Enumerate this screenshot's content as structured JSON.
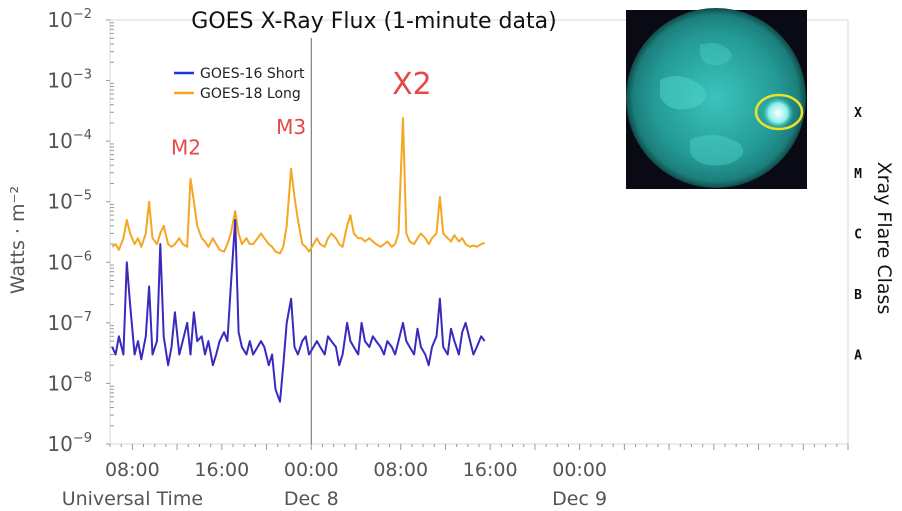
{
  "chart_data": {
    "type": "line",
    "title": "GOES X-Ray Flux (1-minute data)",
    "ylabel": "Watts · m⁻²",
    "xlabel": "Universal Time",
    "right_label": "Xray Flare Class",
    "y_scale": "log",
    "ylim": [
      1e-09,
      0.01
    ],
    "xlim_hours": [
      -18,
      48
    ],
    "grid": false,
    "legend_position": "top-left",
    "y_ticks": [
      {
        "value": 1e-09,
        "base": "10",
        "exp": "−9"
      },
      {
        "value": 1e-08,
        "base": "10",
        "exp": "−8"
      },
      {
        "value": 1e-07,
        "base": "10",
        "exp": "−7"
      },
      {
        "value": 1e-06,
        "base": "10",
        "exp": "−6"
      },
      {
        "value": 1e-05,
        "base": "10",
        "exp": "−5"
      },
      {
        "value": 0.0001,
        "base": "10",
        "exp": "−4"
      },
      {
        "value": 0.001,
        "base": "10",
        "exp": "−3"
      },
      {
        "value": 0.01,
        "base": "10",
        "exp": "−2"
      }
    ],
    "x_ticks": [
      {
        "hour": -16,
        "label": "08:00",
        "sub": "Universal Time"
      },
      {
        "hour": -8,
        "label": "16:00",
        "sub": ""
      },
      {
        "hour": 0,
        "label": "00:00",
        "sub": "Dec 8"
      },
      {
        "hour": 8,
        "label": "08:00",
        "sub": ""
      },
      {
        "hour": 16,
        "label": "16:00",
        "sub": ""
      },
      {
        "hour": 24,
        "label": "00:00",
        "sub": "Dec 9"
      }
    ],
    "flare_classes": [
      {
        "label": "X",
        "value": 0.0003
      },
      {
        "label": "M",
        "value": 3e-05
      },
      {
        "label": "C",
        "value": 3e-06
      },
      {
        "label": "B",
        "value": 3e-07
      },
      {
        "label": "A",
        "value": 3e-08
      }
    ],
    "annotations": [
      {
        "text": "M2",
        "hour": -11.2,
        "value": 6e-05,
        "size": 20
      },
      {
        "text": "M3",
        "hour": -1.8,
        "value": 0.00013,
        "size": 20
      },
      {
        "text": "X2",
        "hour": 9.0,
        "value": 0.0006,
        "size": 30
      }
    ],
    "series": [
      {
        "name": "GOES-16 Short",
        "color": "#1a36d6",
        "x": [
          -17.8,
          -17.5,
          -17.2,
          -16.8,
          -16.5,
          -16.2,
          -15.8,
          -15.5,
          -15.2,
          -14.8,
          -14.5,
          -14.2,
          -13.8,
          -13.5,
          -13.2,
          -12.8,
          -12.5,
          -12.2,
          -11.8,
          -11.5,
          -11.1,
          -10.8,
          -10.5,
          -10.2,
          -9.8,
          -9.5,
          -9.2,
          -8.8,
          -8.5,
          -8.2,
          -7.8,
          -7.5,
          -7.2,
          -6.8,
          -6.5,
          -6.2,
          -5.8,
          -5.5,
          -5.2,
          -4.8,
          -4.5,
          -4.2,
          -3.8,
          -3.5,
          -3.2,
          -2.8,
          -2.5,
          -2.2,
          -1.8,
          -1.5,
          -1.2,
          -0.8,
          -0.5,
          -0.2,
          0.2,
          0.5,
          0.8,
          1.2,
          1.5,
          1.8,
          2.2,
          2.5,
          2.8,
          3.2,
          3.5,
          3.8,
          4.2,
          4.5,
          4.8,
          5.2,
          5.5,
          5.8,
          6.2,
          6.5,
          6.8,
          7.2,
          7.5,
          7.8,
          8.2,
          8.5,
          8.8,
          9.2,
          9.5,
          9.8,
          10.2,
          10.5,
          10.8,
          11.2,
          11.5,
          11.8,
          12.2,
          12.5,
          12.8,
          13.2,
          13.5,
          13.8,
          14.2,
          14.5,
          14.8,
          15.2,
          15.5
        ],
        "values": [
          4e-08,
          3e-08,
          6e-08,
          3e-08,
          1e-06,
          2e-07,
          3e-08,
          5e-08,
          2.5e-08,
          6e-08,
          4e-07,
          3e-08,
          5e-08,
          2e-06,
          6e-08,
          2e-08,
          4e-08,
          1.5e-07,
          3e-08,
          5e-08,
          1e-07,
          3e-08,
          1.5e-07,
          5e-08,
          6e-08,
          3e-08,
          5e-08,
          2e-08,
          3e-08,
          5e-08,
          7e-08,
          5e-08,
          4e-07,
          5e-06,
          7e-08,
          4e-08,
          3e-08,
          5e-08,
          3e-08,
          4e-08,
          5e-08,
          4e-08,
          2e-08,
          3e-08,
          8e-09,
          5e-09,
          2e-08,
          1e-07,
          2.5e-07,
          4e-08,
          3e-08,
          5e-08,
          6e-08,
          3e-08,
          4e-08,
          5e-08,
          4e-08,
          3e-08,
          6e-08,
          5e-08,
          4e-08,
          2e-08,
          3e-08,
          1e-07,
          5e-08,
          4e-08,
          3e-08,
          1e-07,
          5e-08,
          4e-08,
          6e-08,
          5e-08,
          4e-08,
          3e-08,
          5e-08,
          4e-08,
          3e-08,
          5e-08,
          1e-07,
          5e-08,
          4e-08,
          3e-08,
          8e-08,
          4e-08,
          3e-08,
          2e-08,
          4e-08,
          6e-08,
          2.5e-07,
          4e-08,
          3e-08,
          8e-08,
          5e-08,
          3e-08,
          7e-08,
          1e-07,
          5e-08,
          3e-08,
          4e-08,
          6e-08,
          5e-08
        ]
      },
      {
        "name": "GOES-18 Long",
        "color": "#f5a623",
        "x": [
          -17.8,
          -17.5,
          -17.2,
          -16.8,
          -16.5,
          -16.2,
          -15.8,
          -15.5,
          -15.2,
          -14.8,
          -14.5,
          -14.2,
          -13.8,
          -13.5,
          -13.2,
          -12.8,
          -12.5,
          -12.2,
          -11.8,
          -11.5,
          -11.1,
          -10.8,
          -10.5,
          -10.2,
          -9.8,
          -9.5,
          -9.2,
          -8.8,
          -8.5,
          -8.2,
          -7.8,
          -7.5,
          -7.2,
          -6.8,
          -6.5,
          -6.2,
          -5.8,
          -5.5,
          -5.2,
          -4.8,
          -4.5,
          -4.2,
          -3.8,
          -3.5,
          -3.2,
          -2.8,
          -2.5,
          -2.2,
          -1.8,
          -1.5,
          -1.2,
          -0.8,
          -0.5,
          -0.2,
          0.2,
          0.5,
          0.8,
          1.2,
          1.5,
          1.8,
          2.2,
          2.5,
          2.8,
          3.2,
          3.5,
          3.8,
          4.2,
          4.5,
          4.8,
          5.2,
          5.5,
          5.8,
          6.2,
          6.5,
          6.8,
          7.2,
          7.5,
          7.8,
          8.2,
          8.5,
          8.8,
          9.2,
          9.5,
          9.8,
          10.2,
          10.5,
          10.8,
          11.2,
          11.5,
          11.8,
          12.2,
          12.5,
          12.8,
          13.2,
          13.5,
          13.8,
          14.2,
          14.5,
          14.8,
          15.2,
          15.5
        ],
        "values": [
          1.8e-06,
          2e-06,
          1.6e-06,
          2.5e-06,
          5e-06,
          3e-06,
          2e-06,
          2.5e-06,
          1.8e-06,
          3e-06,
          1e-05,
          2.5e-06,
          2e-06,
          3e-06,
          4e-06,
          2e-06,
          1.8e-06,
          2e-06,
          2.5e-06,
          2e-06,
          1.8e-06,
          2.4e-05,
          1e-05,
          4e-06,
          2.5e-06,
          2.2e-06,
          1.8e-06,
          2.5e-06,
          2e-06,
          1.6e-06,
          1.5e-06,
          2e-06,
          3e-06,
          7e-06,
          3e-06,
          2e-06,
          2.5e-06,
          2e-06,
          2e-06,
          2.5e-06,
          3e-06,
          2.5e-06,
          2e-06,
          1.8e-06,
          1.5e-06,
          1.4e-06,
          1.8e-06,
          4e-06,
          3.5e-05,
          1.2e-05,
          5e-06,
          2e-06,
          1.8e-06,
          1.5e-06,
          2e-06,
          2.5e-06,
          2e-06,
          1.8e-06,
          2.5e-06,
          3e-06,
          2.5e-06,
          2e-06,
          1.8e-06,
          4e-06,
          6e-06,
          3e-06,
          2.5e-06,
          2.5e-06,
          2.2e-06,
          2.5e-06,
          2.2e-06,
          2e-06,
          1.8e-06,
          2e-06,
          2.2e-06,
          1.8e-06,
          2e-06,
          3e-06,
          0.00024,
          3e-06,
          2.2e-06,
          2e-06,
          2.5e-06,
          3e-06,
          2.5e-06,
          2e-06,
          2.5e-06,
          3e-06,
          1.2e-05,
          3e-06,
          2.5e-06,
          2.2e-06,
          2.8e-06,
          2.2e-06,
          2.5e-06,
          2e-06,
          1.8e-06,
          1.9e-06,
          1.8e-06,
          2e-06,
          2.1e-06
        ]
      }
    ]
  },
  "inset": {
    "name": "solar disk image",
    "disk_color": "#2fb5b0",
    "background": "#0a0a14",
    "highlight_color": "#e8e32a"
  }
}
